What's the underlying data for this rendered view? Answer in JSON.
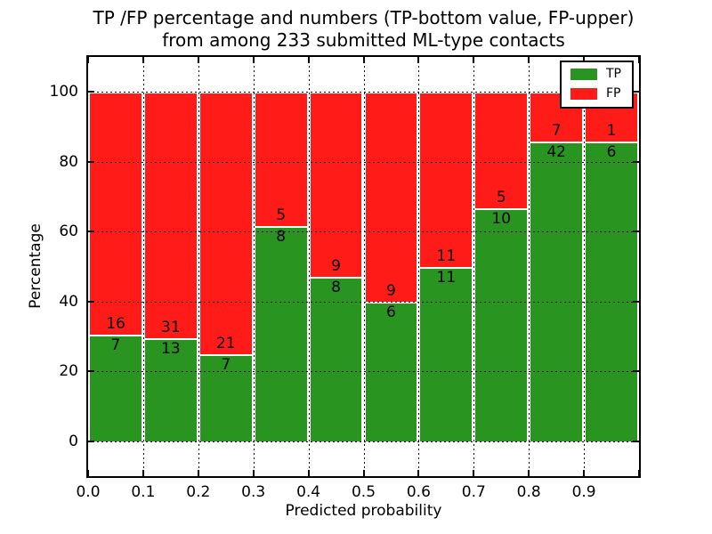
{
  "chart_data": {
    "type": "bar",
    "stacked": true,
    "normalized_to_percent": true,
    "title_line1": "TP /FP percentage and numbers (TP-bottom value, FP-upper)",
    "title_line2": "from among 233 submitted ML-type contacts",
    "xlabel": "Predicted probability",
    "ylabel": "Percentage",
    "total_contacts": 233,
    "x_tick_labels": [
      "0.0",
      "0.1",
      "0.2",
      "0.3",
      "0.4",
      "0.5",
      "0.6",
      "0.7",
      "0.8",
      "0.9"
    ],
    "y_ticks": [
      0,
      20,
      40,
      60,
      80,
      100
    ],
    "ylim": [
      -10,
      110
    ],
    "xlim": [
      0.0,
      1.0
    ],
    "bin_width": 0.1,
    "grid": true,
    "bar_edge_color": "#ffffff",
    "legend": {
      "position": "upper-right",
      "entries": [
        {
          "label": "TP",
          "color": "#2a9421"
        },
        {
          "label": "FP",
          "color": "#ff1b17"
        }
      ]
    },
    "series": [
      {
        "name": "TP",
        "position": "bottom",
        "color": "#2a9421",
        "values": [
          7,
          13,
          7,
          8,
          8,
          6,
          11,
          10,
          42,
          6
        ]
      },
      {
        "name": "FP",
        "position": "top",
        "color": "#ff1b17",
        "values": [
          16,
          31,
          21,
          5,
          9,
          9,
          11,
          5,
          7,
          1
        ]
      }
    ],
    "bins": [
      {
        "x_start": 0.0,
        "x_end": 0.1,
        "tp": 7,
        "fp": 16,
        "tp_pct": 30.43
      },
      {
        "x_start": 0.1,
        "x_end": 0.2,
        "tp": 13,
        "fp": 31,
        "tp_pct": 29.55
      },
      {
        "x_start": 0.2,
        "x_end": 0.3,
        "tp": 7,
        "fp": 21,
        "tp_pct": 25.0
      },
      {
        "x_start": 0.3,
        "x_end": 0.4,
        "tp": 8,
        "fp": 5,
        "tp_pct": 61.54
      },
      {
        "x_start": 0.4,
        "x_end": 0.5,
        "tp": 8,
        "fp": 9,
        "tp_pct": 47.06
      },
      {
        "x_start": 0.5,
        "x_end": 0.6,
        "tp": 6,
        "fp": 9,
        "tp_pct": 40.0
      },
      {
        "x_start": 0.6,
        "x_end": 0.7,
        "tp": 11,
        "fp": 11,
        "tp_pct": 50.0
      },
      {
        "x_start": 0.7,
        "x_end": 0.8,
        "tp": 10,
        "fp": 5,
        "tp_pct": 66.67
      },
      {
        "x_start": 0.8,
        "x_end": 0.9,
        "tp": 42,
        "fp": 7,
        "tp_pct": 85.71
      },
      {
        "x_start": 0.9,
        "x_end": 1.0,
        "tp": 6,
        "fp": 1,
        "tp_pct": 85.71
      }
    ]
  }
}
